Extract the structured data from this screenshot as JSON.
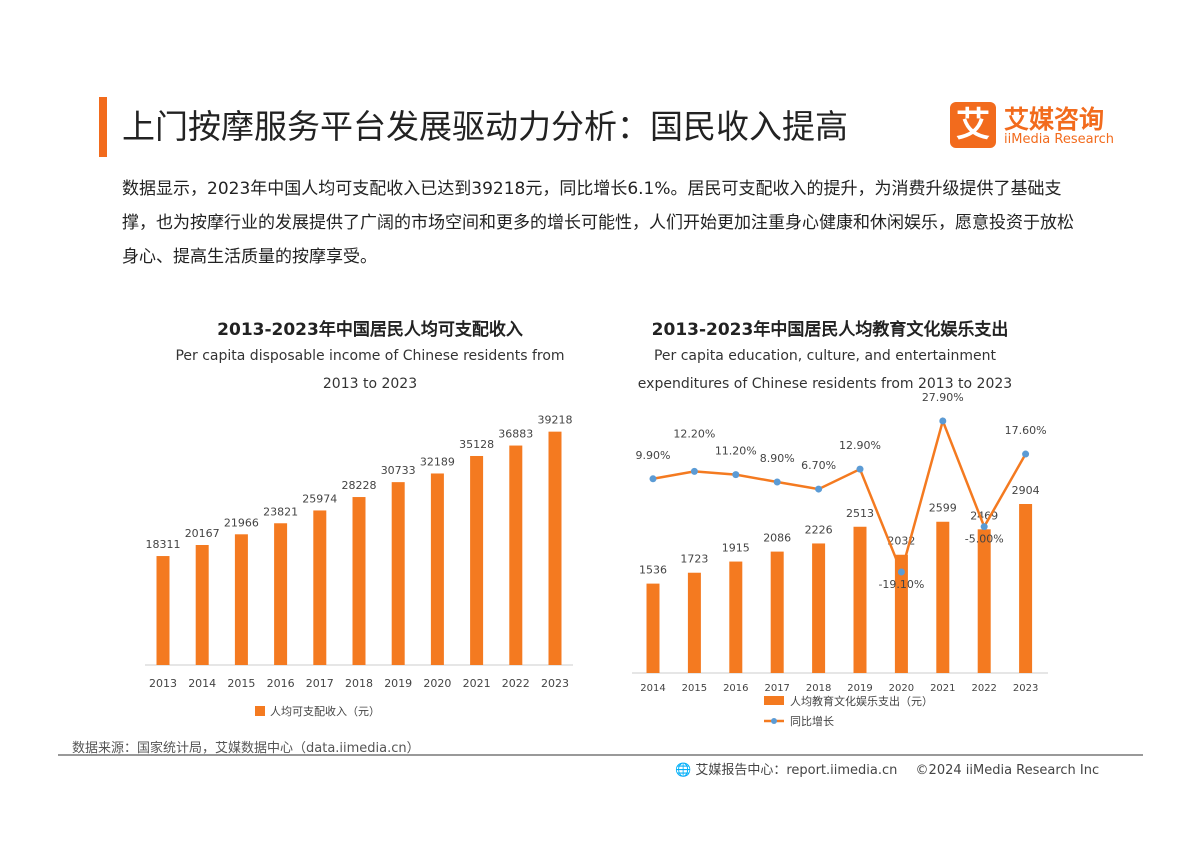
{
  "header": {
    "title": "上门按摩服务平台发展驱动力分析：国民收入提高",
    "logo_mark": "艾",
    "logo_cn": "艾媒咨询",
    "logo_en": "iiMedia Research"
  },
  "intro": "数据显示，2023年中国人均可支配收入已达到39218元，同比增长6.1%。居民可支配收入的提升，为消费升级提供了基础支撑，也为按摩行业的发展提供了广阔的市场空间和更多的增长可能性，人们开始更加注重身心健康和休闲娱乐，愿意投资于放松身心、提高生活质量的按摩享受。",
  "colors": {
    "accent": "#f26b1d",
    "bar": "#f47a20",
    "line": "#f47a20",
    "marker": "#5b9bd5"
  },
  "chart_data": [
    {
      "type": "bar",
      "title": "2013-2023年中国居民人均可支配收入",
      "subtitle": "Per capita disposable income of Chinese residents from 2013 to 2023",
      "categories": [
        "2013",
        "2014",
        "2015",
        "2016",
        "2017",
        "2018",
        "2019",
        "2020",
        "2021",
        "2022",
        "2023"
      ],
      "series": [
        {
          "name": "人均可支配收入（元）",
          "values": [
            18311,
            20167,
            21966,
            23821,
            25974,
            28228,
            30733,
            32189,
            35128,
            36883,
            39218
          ]
        }
      ],
      "ylim": [
        0,
        40000
      ],
      "grid": false,
      "legend": "bottom"
    },
    {
      "type": "bar+line",
      "title": "2013-2023年中国居民人均教育文化娱乐支出",
      "subtitle": "Per capita education, culture, and entertainment expenditures of Chinese residents from 2013 to 2023",
      "categories": [
        "2014",
        "2015",
        "2016",
        "2017",
        "2018",
        "2019",
        "2020",
        "2021",
        "2022",
        "2023"
      ],
      "series": [
        {
          "name": "人均教育文化娱乐支出（元）",
          "values": [
            1536,
            1723,
            1915,
            2086,
            2226,
            2513,
            2032,
            2599,
            2469,
            2904
          ]
        },
        {
          "name": "同比增长",
          "values": [
            9.9,
            12.2,
            11.2,
            8.9,
            6.7,
            12.9,
            -19.1,
            27.9,
            -5.0,
            17.6
          ],
          "labels": [
            "9.90%",
            "12.20%",
            "11.20%",
            "8.90%",
            "6.70%",
            "12.90%",
            "-19.10%",
            "27.90%",
            "-5.00%",
            "17.60%"
          ]
        }
      ],
      "grid": false,
      "legend": "bottom"
    }
  ],
  "footer": {
    "source": "数据来源：国家统计局，艾媒数据中心（data.iimedia.cn）",
    "report": "艾媒报告中心：report.iimedia.cn",
    "copyright": "©2024  iiMedia Research  Inc"
  }
}
